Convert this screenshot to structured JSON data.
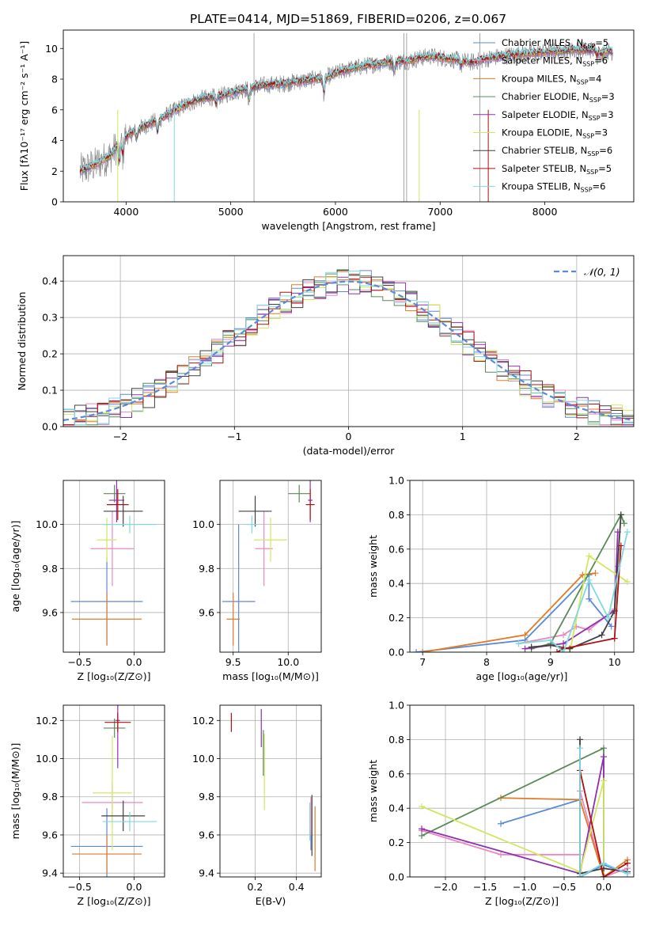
{
  "figure_title": "PLATE=0414, MJD=51869, FIBERID=0206, z=0.067",
  "colors": {
    "chabrier_miles": "#5b8ad8",
    "salpeter_miles": "#e888c0",
    "kroupa_miles": "#e07b28",
    "chabrier_elodie": "#5a8a5a",
    "salpeter_elodie": "#9030b0",
    "kroupa_elodie": "#d0e860",
    "chabrier_stelib": "#404040",
    "salpeter_stelib": "#b01010",
    "kroupa_stelib": "#80d8e0",
    "data": "#808080",
    "normal": "#5b8ad8",
    "grid": "#b0b0b0"
  },
  "chart_data": [
    {
      "id": "spectrum",
      "type": "line",
      "title": "PLATE=0414, MJD=51869, FIBERID=0206, z=0.067",
      "xlabel": "wavelength [Angstrom, rest frame]",
      "ylabel": "Flux [fλ10⁻¹⁷ erg cm⁻² s⁻¹ A⁻¹]",
      "xlim": [
        3400,
        8850
      ],
      "ylim": [
        0,
        11.2
      ],
      "xticks": [
        4000,
        5000,
        6000,
        7000,
        8000
      ],
      "yticks": [
        0,
        2,
        4,
        6,
        8,
        10
      ],
      "legend_position": "right",
      "continuum": {
        "x": [
          3560,
          3700,
          3850,
          3950,
          4100,
          4300,
          4500,
          4700,
          4900,
          5100,
          5300,
          5500,
          5700,
          5900,
          6100,
          6300,
          6500,
          6700,
          6900,
          7100,
          7300,
          7500,
          7700,
          7900,
          8100,
          8300,
          8500,
          8650
        ],
        "y": [
          2.0,
          2.4,
          3.0,
          4.0,
          4.7,
          5.3,
          6.1,
          6.7,
          6.9,
          7.3,
          7.6,
          7.7,
          7.9,
          8.1,
          8.6,
          8.9,
          9.1,
          9.2,
          9.5,
          9.3,
          9.1,
          9.4,
          9.6,
          9.7,
          9.8,
          9.9,
          9.9,
          9.8
        ]
      },
      "legend": [
        {
          "name": "Chabrier MILES, N",
          "sub": "SSP",
          "suffix": "=5",
          "color": "#5b8ad8"
        },
        {
          "name": "Salpeter MILES, N",
          "sub": "SSP",
          "suffix": "=6",
          "color": "#e888c0"
        },
        {
          "name": "Kroupa MILES, N",
          "sub": "SSP",
          "suffix": "=4",
          "color": "#e07b28"
        },
        {
          "name": "Chabrier ELODIE, N",
          "sub": "SSP",
          "suffix": "=3",
          "color": "#5a8a5a"
        },
        {
          "name": "Salpeter ELODIE, N",
          "sub": "SSP",
          "suffix": "=3",
          "color": "#9030b0"
        },
        {
          "name": "Kroupa ELODIE, N",
          "sub": "SSP",
          "suffix": "=3",
          "color": "#d0e860"
        },
        {
          "name": "Chabrier STELIB, N",
          "sub": "SSP",
          "suffix": "=6",
          "color": "#404040"
        },
        {
          "name": "Salpeter STELIB, N",
          "sub": "SSP",
          "suffix": "=5",
          "color": "#b01010"
        },
        {
          "name": "Kroupa STELIB, N",
          "sub": "SSP",
          "suffix": "=6",
          "color": "#80d8e0"
        }
      ]
    },
    {
      "id": "residuals",
      "type": "histogram",
      "xlabel": "(data-model)/error",
      "ylabel": "Normed distribution",
      "xlim": [
        -2.5,
        2.5
      ],
      "ylim": [
        0,
        0.47
      ],
      "xticks": [
        -2,
        -1,
        0,
        1,
        2
      ],
      "yticks": [
        0.0,
        0.1,
        0.2,
        0.3,
        0.4
      ],
      "grid": true,
      "legend": [
        {
          "name": "𝒩(0, 1)",
          "color": "#5b8ad8",
          "style": "dashed"
        }
      ],
      "legend_position": "top-right",
      "bin_width": 0.1
    },
    {
      "id": "age-vs-Z",
      "type": "errorbar",
      "xlabel": "Z [log₁₀(Z/Z⊙)]",
      "ylabel": "age  [log₁₀(age/yr)]",
      "xlim": [
        -0.65,
        0.28
      ],
      "ylim": [
        9.42,
        10.2
      ],
      "xticks": [
        -0.5,
        0.0
      ],
      "yticks": [
        9.6,
        9.8,
        10.0
      ],
      "grid": true,
      "points": [
        {
          "x": -0.25,
          "xerr": 0.33,
          "y": 9.65,
          "yerr": 0.2,
          "color": "#5b8ad8"
        },
        {
          "x": -0.2,
          "xerr": 0.2,
          "y": 9.89,
          "yerr": 0.17,
          "color": "#e888c0"
        },
        {
          "x": -0.25,
          "xerr": 0.32,
          "y": 9.57,
          "yerr": 0.12,
          "color": "#e07b28"
        },
        {
          "x": -0.18,
          "xerr": 0.1,
          "y": 10.14,
          "yerr": 0.04,
          "color": "#5a8a5a"
        },
        {
          "x": -0.16,
          "xerr": 0.07,
          "y": 10.11,
          "yerr": 0.1,
          "color": "#9030b0"
        },
        {
          "x": -0.25,
          "xerr": 0.09,
          "y": 9.93,
          "yerr": 0.1,
          "color": "#d0e860"
        },
        {
          "x": -0.1,
          "xerr": 0.18,
          "y": 10.06,
          "yerr": 0.07,
          "color": "#404040"
        },
        {
          "x": -0.15,
          "xerr": 0.1,
          "y": 10.09,
          "yerr": 0.07,
          "color": "#b01010"
        },
        {
          "x": -0.04,
          "xerr": 0.25,
          "y": 10.0,
          "yerr": 0.04,
          "color": "#80d8e0"
        }
      ]
    },
    {
      "id": "age-vs-mass",
      "type": "errorbar",
      "xlabel": "mass [log₁₀(M/M⊙)]",
      "ylabel": "",
      "xlim": [
        9.38,
        10.3
      ],
      "ylim": [
        9.42,
        10.2
      ],
      "xticks": [
        9.5,
        10.0
      ],
      "yticks": [
        9.6,
        9.8,
        10.0
      ],
      "grid": true,
      "points": [
        {
          "x": 9.55,
          "xerr": 0.15,
          "y": 9.65,
          "yerr": 0.35,
          "color": "#5b8ad8"
        },
        {
          "x": 9.78,
          "xerr": 0.08,
          "y": 9.89,
          "yerr": 0.17,
          "color": "#e888c0"
        },
        {
          "x": 9.5,
          "xerr": 0.06,
          "y": 9.57,
          "yerr": 0.12,
          "color": "#e07b28"
        },
        {
          "x": 10.1,
          "xerr": 0.1,
          "y": 10.14,
          "yerr": 0.04,
          "color": "#5a8a5a"
        },
        {
          "x": 10.2,
          "xerr": 0.02,
          "y": 10.11,
          "yerr": 0.1,
          "color": "#9030b0"
        },
        {
          "x": 9.84,
          "xerr": 0.15,
          "y": 9.93,
          "yerr": 0.1,
          "color": "#d0e860"
        },
        {
          "x": 9.7,
          "xerr": 0.15,
          "y": 10.06,
          "yerr": 0.07,
          "color": "#404040"
        },
        {
          "x": 10.2,
          "xerr": 0.04,
          "y": 10.09,
          "yerr": 0.07,
          "color": "#b01010"
        },
        {
          "x": 9.67,
          "xerr": 0.05,
          "y": 10.0,
          "yerr": 0.04,
          "color": "#80d8e0"
        }
      ]
    },
    {
      "id": "weight-vs-age",
      "type": "line",
      "xlabel": "age  [log₁₀(age/yr)]",
      "ylabel": "mass weight",
      "xlim": [
        6.8,
        10.3
      ],
      "ylim": [
        0,
        1.0
      ],
      "xticks": [
        7,
        8,
        9,
        10
      ],
      "yticks": [
        0.0,
        0.2,
        0.4,
        0.6,
        0.8,
        1.0
      ],
      "grid": true,
      "series": [
        {
          "x": [
            6.9,
            8.6,
            9.6,
            9.6,
            9.95
          ],
          "y": [
            0.0,
            0.07,
            0.45,
            0.31,
            0.15
          ],
          "color": "#5b8ad8"
        },
        {
          "x": [
            8.5,
            9.2,
            9.4,
            9.6,
            10.0,
            10.05
          ],
          "y": [
            0.05,
            0.1,
            0.15,
            0.13,
            0.25,
            0.5
          ],
          "color": "#e888c0"
        },
        {
          "x": [
            7.0,
            8.6,
            9.5,
            9.7
          ],
          "y": [
            0.0,
            0.1,
            0.45,
            0.46
          ],
          "color": "#e07b28"
        },
        {
          "x": [
            8.7,
            9.0,
            10.1,
            10.15
          ],
          "y": [
            0.02,
            0.05,
            0.8,
            0.75
          ],
          "color": "#5a8a5a"
        },
        {
          "x": [
            8.6,
            9.2,
            10.0,
            10.05
          ],
          "y": [
            0.02,
            0.05,
            0.24,
            0.7
          ],
          "color": "#9030b0"
        },
        {
          "x": [
            9.3,
            9.6,
            10.2
          ],
          "y": [
            0.0,
            0.56,
            0.41
          ],
          "color": "#d0e860"
        },
        {
          "x": [
            8.7,
            9.0,
            9.3,
            9.8,
            10.0,
            10.1
          ],
          "y": [
            0.03,
            0.04,
            0.02,
            0.1,
            0.24,
            0.8
          ],
          "color": "#404040"
        },
        {
          "x": [
            9.1,
            9.2,
            10.0,
            10.1
          ],
          "y": [
            0.0,
            0.02,
            0.08,
            0.62
          ],
          "color": "#b01010"
        },
        {
          "x": [
            8.5,
            9.0,
            9.2,
            9.6,
            9.9,
            10.2
          ],
          "y": [
            0.05,
            0.07,
            0.0,
            0.42,
            0.2,
            0.7
          ],
          "color": "#80d8e0"
        }
      ]
    },
    {
      "id": "mass-vs-Z",
      "type": "errorbar",
      "xlabel": "Z [log₁₀(Z/Z⊙)]",
      "ylabel": "mass [log₁₀(M/M⊙)]",
      "xlim": [
        -0.65,
        0.28
      ],
      "ylim": [
        9.38,
        10.28
      ],
      "xticks": [
        -0.5,
        0.0
      ],
      "yticks": [
        9.4,
        9.6,
        9.8,
        10.0,
        10.2
      ],
      "grid": true,
      "points": [
        {
          "x": -0.25,
          "xerr": 0.33,
          "y": 9.54,
          "yerr": 0.2,
          "color": "#5b8ad8"
        },
        {
          "x": -0.2,
          "xerr": 0.28,
          "y": 9.77,
          "yerr": 0.1,
          "color": "#e888c0"
        },
        {
          "x": -0.25,
          "xerr": 0.32,
          "y": 9.5,
          "yerr": 0.1,
          "color": "#e07b28"
        },
        {
          "x": -0.18,
          "xerr": 0.1,
          "y": 10.16,
          "yerr": 0.05,
          "color": "#5a8a5a"
        },
        {
          "x": -0.15,
          "xerr": 0.02,
          "y": 10.2,
          "yerr": 0.25,
          "color": "#9030b0"
        },
        {
          "x": -0.2,
          "xerr": 0.18,
          "y": 9.82,
          "yerr": 0.3,
          "color": "#d0e860"
        },
        {
          "x": -0.1,
          "xerr": 0.2,
          "y": 9.7,
          "yerr": 0.08,
          "color": "#404040"
        },
        {
          "x": -0.15,
          "xerr": 0.12,
          "y": 10.19,
          "yerr": 0.05,
          "color": "#b01010"
        },
        {
          "x": -0.04,
          "xerr": 0.25,
          "y": 9.67,
          "yerr": 0.05,
          "color": "#80d8e0"
        }
      ]
    },
    {
      "id": "mass-vs-EBV",
      "type": "errorbar",
      "xlabel": "E(B-V)",
      "ylabel": "",
      "xlim": [
        0.03,
        0.52
      ],
      "ylim": [
        9.38,
        10.28
      ],
      "xticks": [
        0.2,
        0.4
      ],
      "yticks": [
        9.4,
        9.6,
        9.8,
        10.0,
        10.2
      ],
      "grid": true,
      "points": [
        {
          "x": 0.47,
          "y": 9.57,
          "yerr": 0.05,
          "color": "#5b8ad8"
        },
        {
          "x": 0.47,
          "y": 9.7,
          "yerr": 0.1,
          "color": "#e888c0"
        },
        {
          "x": 0.49,
          "y": 9.58,
          "yerr": 0.17,
          "color": "#e07b28"
        },
        {
          "x": 0.24,
          "y": 10.03,
          "yerr": 0.12,
          "color": "#5a8a5a"
        },
        {
          "x": 0.23,
          "y": 10.16,
          "yerr": 0.1,
          "color": "#9030b0"
        },
        {
          "x": 0.245,
          "y": 9.93,
          "yerr": 0.2,
          "color": "#d0e860"
        },
        {
          "x": 0.475,
          "y": 9.65,
          "yerr": 0.16,
          "color": "#404040"
        },
        {
          "x": 0.085,
          "y": 10.19,
          "yerr": 0.05,
          "color": "#b01010"
        },
        {
          "x": 0.465,
          "y": 9.67,
          "yerr": 0.1,
          "color": "#80d8e0"
        }
      ]
    },
    {
      "id": "weight-vs-Z",
      "type": "line",
      "xlabel": "Z [log₁₀(Z/Z⊙)]",
      "ylabel": "mass weight",
      "xlim": [
        -2.45,
        0.38
      ],
      "ylim": [
        0,
        1.0
      ],
      "xticks": [
        -2.0,
        -1.5,
        -1.0,
        -0.5,
        0.0
      ],
      "yticks": [
        0.0,
        0.2,
        0.4,
        0.6,
        0.8,
        1.0
      ],
      "grid": true,
      "series": [
        {
          "x": [
            -1.3,
            -0.3,
            -0.3,
            0.0,
            0.3
          ],
          "y": [
            0.31,
            0.45,
            0.0,
            0.07,
            0.02
          ],
          "color": "#5b8ad8"
        },
        {
          "x": [
            -2.3,
            -1.3,
            -0.3,
            -0.3,
            0.0,
            0.3
          ],
          "y": [
            0.27,
            0.13,
            0.13,
            0.5,
            0.0,
            0.05
          ],
          "color": "#e888c0"
        },
        {
          "x": [
            -1.3,
            -0.3,
            0.0,
            0.3
          ],
          "y": [
            0.46,
            0.45,
            0.0,
            0.1
          ],
          "color": "#e07b28"
        },
        {
          "x": [
            -2.3,
            0.0,
            0.0
          ],
          "y": [
            0.24,
            0.75,
            0.0
          ],
          "color": "#5a8a5a"
        },
        {
          "x": [
            -2.3,
            -0.3,
            0.0,
            0.0
          ],
          "y": [
            0.28,
            0.02,
            0.7,
            0.0
          ],
          "color": "#9030b0"
        },
        {
          "x": [
            -2.3,
            -0.3,
            0.0,
            0.0
          ],
          "y": [
            0.41,
            0.03,
            0.56,
            0.0
          ],
          "color": "#d0e860"
        },
        {
          "x": [
            -0.3,
            -0.3,
            0.0,
            0.3
          ],
          "y": [
            0.8,
            0.02,
            0.05,
            0.03
          ],
          "color": "#404040"
        },
        {
          "x": [
            -0.3,
            -0.3,
            0.0,
            0.3
          ],
          "y": [
            0.0,
            0.62,
            0.0,
            0.08
          ],
          "color": "#b01010"
        },
        {
          "x": [
            -0.3,
            -0.3,
            0.0,
            0.3
          ],
          "y": [
            0.75,
            0.0,
            0.08,
            0.02
          ],
          "color": "#80d8e0"
        }
      ]
    }
  ]
}
